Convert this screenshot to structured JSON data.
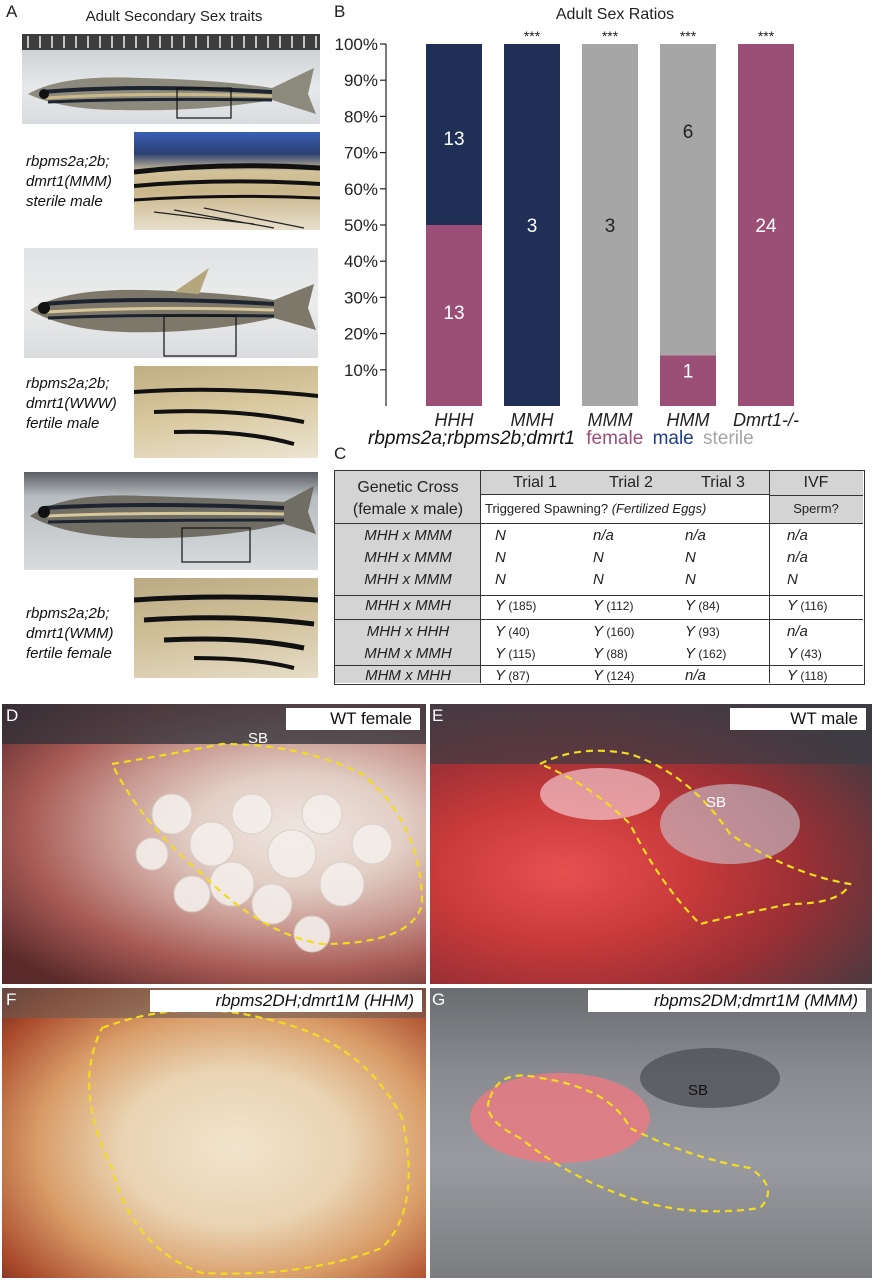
{
  "panelA": {
    "label": "A",
    "title": "Adult Secondary Sex traits",
    "captions": [
      [
        "rbpms2a;2b;",
        "dmrt1(MMM)",
        "sterile male"
      ],
      [
        "rbpms2a;2b;",
        "dmrt1(WWW)",
        "fertile male"
      ],
      [
        "rbpms2a;2b;",
        "dmrt1(WMM)",
        "fertile female"
      ]
    ]
  },
  "panelB": {
    "label": "B",
    "legend_prefix": "rbpms2a;rbpms2b;dmrt1",
    "legend": [
      {
        "label": "female",
        "color": "#9b4f77"
      },
      {
        "label": "male",
        "color": "#1f2f55"
      },
      {
        "label": "sterile",
        "color": "#a6a6a6"
      }
    ]
  },
  "chart_data": {
    "type": "bar",
    "title": "Adult Sex Ratios",
    "stacked": true,
    "ylim": [
      0,
      100
    ],
    "yticks": [
      "10%",
      "20%",
      "30%",
      "40%",
      "50%",
      "60%",
      "70%",
      "80%",
      "90%",
      "100%"
    ],
    "categories": [
      "HHH",
      "MMH",
      "MMM",
      "HMM",
      "Dmrt1-/-"
    ],
    "significance": [
      "",
      "***",
      "***",
      "***",
      "***"
    ],
    "series": [
      {
        "name": "female",
        "color": "#9b4f77",
        "values": [
          50,
          0,
          0,
          14,
          100
        ],
        "counts": [
          "13",
          "",
          "",
          "1",
          "24"
        ]
      },
      {
        "name": "male",
        "color": "#1f2f55",
        "values": [
          50,
          100,
          0,
          0,
          0
        ],
        "counts": [
          "13",
          "3",
          "",
          "",
          ""
        ]
      },
      {
        "name": "sterile",
        "color": "#a6a6a6",
        "values": [
          0,
          0,
          100,
          86,
          0
        ],
        "counts": [
          "",
          "",
          "3",
          "6",
          ""
        ]
      }
    ]
  },
  "panelC": {
    "label": "C",
    "header_left": [
      "Genetic Cross",
      "(female x male)"
    ],
    "trials": [
      "Trial 1",
      "Trial 2",
      "Trial 3"
    ],
    "ivf": "IVF",
    "sub_left": "Triggered Spawning?",
    "sub_right": "(Fertilized Eggs)",
    "sub_ivf": "Sperm?",
    "rows": [
      {
        "cross": "MHH x MMM",
        "t1": "N",
        "t1n": "",
        "t2": "n/a",
        "t2n": "",
        "t3": "n/a",
        "t3n": "",
        "ivf": "n/a",
        "ivfn": ""
      },
      {
        "cross": "MHH x MMM",
        "t1": "N",
        "t1n": "",
        "t2": "N",
        "t2n": "",
        "t3": "N",
        "t3n": "",
        "ivf": "n/a",
        "ivfn": ""
      },
      {
        "cross": "MHH x MMM",
        "t1": "N",
        "t1n": "",
        "t2": "N",
        "t2n": "",
        "t3": "N",
        "t3n": "",
        "ivf": "N",
        "ivfn": ""
      },
      {
        "cross": "MHH x MMH",
        "t1": "Y",
        "t1n": "(185)",
        "t2": "Y",
        "t2n": "(112)",
        "t3": "Y",
        "t3n": "(84)",
        "ivf": "Y",
        "ivfn": "(116)"
      },
      {
        "cross": "MHH x HHH",
        "t1": "Y",
        "t1n": "(40)",
        "t2": "Y",
        "t2n": "(160)",
        "t3": "Y",
        "t3n": "(93)",
        "ivf": "n/a",
        "ivfn": ""
      },
      {
        "cross": "MHM x MMH",
        "t1": "Y",
        "t1n": "(115)",
        "t2": "Y",
        "t2n": "(88)",
        "t3": "Y",
        "t3n": "(162)",
        "ivf": "Y",
        "ivfn": "(43)"
      },
      {
        "cross": "MHM x MHH",
        "t1": "Y",
        "t1n": "(87)",
        "t2": "Y",
        "t2n": "(124)",
        "t3": "n/a",
        "t3n": "",
        "ivf": "Y",
        "ivfn": "(118)"
      }
    ]
  },
  "panelD": {
    "label": "D",
    "tag": "WT female",
    "sb": "SB"
  },
  "panelE": {
    "label": "E",
    "tag": "WT male",
    "sb": "SB"
  },
  "panelF": {
    "label": "F",
    "tag": "rbpms2DH;dmrt1M (HHM)"
  },
  "panelG": {
    "label": "G",
    "tag": "rbpms2DM;dmrt1M (MMM)",
    "sb": "SB"
  }
}
